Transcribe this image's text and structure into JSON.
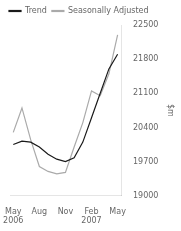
{
  "chart_data": {
    "type": "line",
    "x": [
      0,
      1,
      2,
      3,
      4,
      5,
      6,
      7,
      8,
      9,
      10,
      11,
      12
    ],
    "series": [
      {
        "name": "Seasonally Adjusted",
        "color": "#aaaaaa",
        "values": [
          20300,
          20800,
          20150,
          19600,
          19500,
          19450,
          19480,
          20000,
          20500,
          21150,
          21050,
          21500,
          22300
        ]
      },
      {
        "name": "Trend",
        "color": "#1a1a1a",
        "values": [
          20050,
          20120,
          20100,
          20000,
          19850,
          19750,
          19700,
          19780,
          20100,
          20600,
          21100,
          21600,
          21900
        ]
      }
    ],
    "xlim": [
      -0.3,
      12.5
    ],
    "xticks": [
      {
        "value": 0,
        "label": "May\n2006"
      },
      {
        "value": 3,
        "label": "Aug"
      },
      {
        "value": 6,
        "label": "Nov"
      },
      {
        "value": 9,
        "label": "Feb\n2007"
      },
      {
        "value": 12,
        "label": "May"
      }
    ],
    "ylabel": "$m",
    "ylim": [
      19000,
      22500
    ],
    "yticks": [
      19000,
      19700,
      20400,
      21100,
      21800,
      22500
    ],
    "grid": false,
    "legend": "upper left"
  }
}
